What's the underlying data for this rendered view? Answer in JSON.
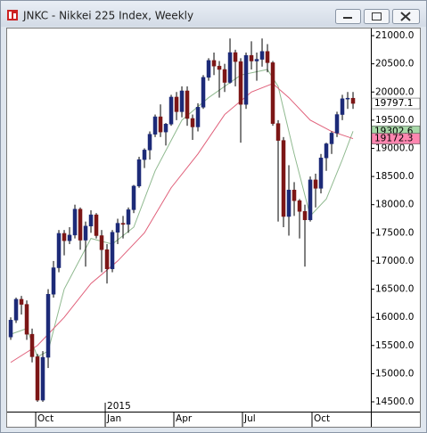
{
  "chart_data": {
    "type": "candlestick",
    "title": "JNKC - Nikkei 225 Index, Weekly",
    "open": [
      15650,
      15950,
      16320,
      16230,
      15700,
      15300,
      14530,
      15290,
      16410,
      16880,
      17490,
      17360,
      17460,
      17920,
      17370,
      17620,
      17820,
      17450,
      17200,
      16860,
      17510,
      17670,
      17650,
      17910,
      18330,
      18800,
      18970,
      19250,
      19560,
      19290,
      19430,
      19910,
      19650,
      20020,
      19530,
      19380,
      19730,
      20260,
      20560,
      20460,
      20400,
      20170,
      20700,
      20540,
      19780,
      20650,
      20550,
      20580,
      20720,
      20520,
      19440,
      19140,
      17790,
      18260,
      18070,
      17880,
      17730,
      18440,
      18290,
      18830,
      19080,
      19270,
      19600,
      19880,
      19890
    ],
    "high": [
      16000,
      16350,
      16380,
      16300,
      15800,
      15350,
      15400,
      16500,
      17000,
      17550,
      17550,
      17600,
      18000,
      17950,
      17700,
      17900,
      17850,
      17550,
      17300,
      17550,
      17750,
      17800,
      17950,
      18350,
      18850,
      19000,
      19300,
      19600,
      19780,
      19450,
      19950,
      20000,
      20100,
      20100,
      19600,
      19800,
      20300,
      20600,
      20700,
      20550,
      20500,
      20950,
      20750,
      20600,
      20700,
      20900,
      20700,
      20950,
      20850,
      20550,
      19500,
      19200,
      18700,
      18400,
      18100,
      18000,
      18500,
      18550,
      18900,
      19100,
      19300,
      19650,
      19950,
      20000,
      20000
    ],
    "low": [
      15600,
      15900,
      16050,
      15600,
      15200,
      14500,
      14500,
      15100,
      16350,
      16800,
      17100,
      17300,
      17400,
      17200,
      16900,
      17500,
      17400,
      16800,
      16600,
      16800,
      17300,
      17400,
      17500,
      17850,
      18300,
      18650,
      18800,
      19200,
      19200,
      19050,
      19400,
      19500,
      19550,
      19400,
      19150,
      19300,
      19700,
      20200,
      20300,
      19900,
      20000,
      20150,
      20100,
      19100,
      19700,
      20400,
      20200,
      20450,
      20350,
      19400,
      17700,
      17600,
      17450,
      17800,
      17400,
      16900,
      17700,
      17950,
      18200,
      18600,
      18900,
      19200,
      19500,
      19700,
      19700
    ],
    "close": [
      15950,
      16320,
      16230,
      15700,
      15300,
      14530,
      15290,
      16410,
      16880,
      17490,
      17360,
      17460,
      17920,
      17370,
      17620,
      17820,
      17450,
      17200,
      16860,
      17510,
      17670,
      17650,
      17910,
      18330,
      18800,
      18970,
      19250,
      19560,
      19290,
      19430,
      19910,
      19650,
      20020,
      19530,
      19380,
      19730,
      20260,
      20560,
      20460,
      20400,
      20170,
      20700,
      20540,
      19780,
      20650,
      20550,
      20580,
      20720,
      20520,
      19440,
      19140,
      17790,
      18260,
      18070,
      17880,
      17730,
      18440,
      18290,
      18830,
      19080,
      19270,
      19600,
      19880,
      19890,
      19797.1
    ],
    "up_color": "#1c2a78",
    "down_color": "#7c1616",
    "lines": [
      {
        "color": "#8fb98f",
        "x": [
          0,
          3,
          5,
          7,
          10,
          15,
          19,
          23,
          27,
          32,
          37,
          43,
          48,
          50,
          53,
          56,
          59,
          62,
          64
        ],
        "values": [
          15700,
          15800,
          15300,
          15400,
          16500,
          17400,
          17300,
          17600,
          18600,
          19500,
          19900,
          20300,
          20400,
          20100,
          18900,
          17800,
          18100,
          18800,
          19302.6
        ]
      },
      {
        "color": "#e0607a",
        "x": [
          0,
          5,
          10,
          15,
          20,
          25,
          30,
          35,
          40,
          45,
          49,
          52,
          56,
          60,
          64
        ],
        "values": [
          15200,
          15500,
          16000,
          16600,
          17000,
          17500,
          18300,
          18900,
          19600,
          20000,
          20150,
          19900,
          19500,
          19300,
          19172.3
        ]
      }
    ],
    "price_labels": [
      {
        "value": 19797.1,
        "color": "#ffffff"
      },
      {
        "value": 19302.6,
        "color": "#a8d8a8"
      },
      {
        "value": 19172.3,
        "color": "#ff86b0"
      }
    ],
    "ylim": [
      14326,
      21127
    ],
    "yticks": [
      {
        "value": 21000,
        "label": "21000.0"
      },
      {
        "value": 20500,
        "label": "20500.0"
      },
      {
        "value": 20000,
        "label": "20000.0"
      },
      {
        "value": 19500,
        "label": "19500.0"
      },
      {
        "value": 19000,
        "label": "19000.0"
      },
      {
        "value": 18500,
        "label": "18500.0"
      },
      {
        "value": 18000,
        "label": "18000.0"
      },
      {
        "value": 17500,
        "label": "17500.0"
      },
      {
        "value": 17000,
        "label": "17000.0"
      },
      {
        "value": 16500,
        "label": "16500.0"
      },
      {
        "value": 16000,
        "label": "16000.0"
      },
      {
        "value": 15500,
        "label": "15500.0"
      },
      {
        "value": 15000,
        "label": "15000.0"
      },
      {
        "value": 14500,
        "label": "14500.0"
      }
    ],
    "xlim": [
      -0.67,
      67.33
    ],
    "xticks": [
      {
        "value": 4.67,
        "label": "Oct"
      },
      {
        "value": 17.67,
        "label": "Jan"
      },
      {
        "value": 30.5,
        "label": "Apr"
      },
      {
        "value": 43.33,
        "label": "Jul"
      },
      {
        "value": 56.33,
        "label": "Oct"
      }
    ],
    "year_label": {
      "value": 17.67,
      "label": "2015"
    },
    "grid": false
  }
}
